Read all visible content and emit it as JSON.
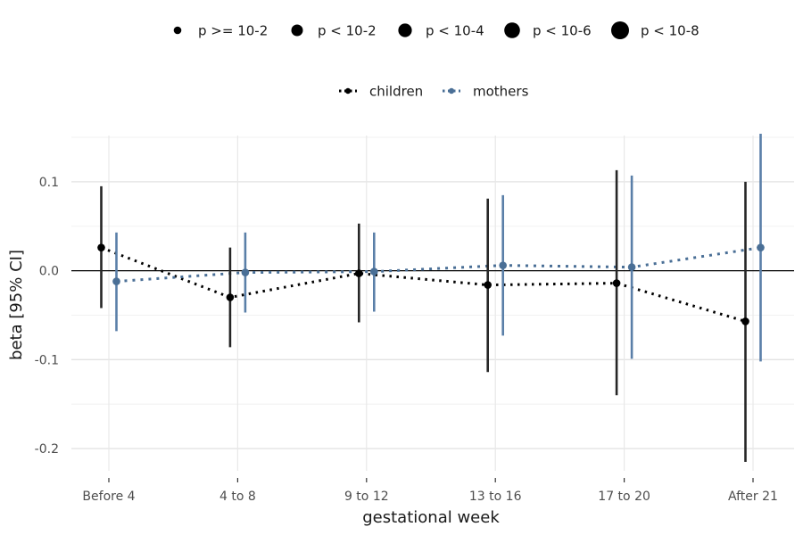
{
  "chart_data": {
    "type": "scatter",
    "xlabel": "gestational week",
    "ylabel": "beta [95% CI]",
    "categories": [
      "Before 4",
      "4 to 8",
      "9 to 12",
      "13 to 16",
      "17 to 20",
      "After 21"
    ],
    "ylim": [
      -0.225,
      0.152
    ],
    "yticks": [
      -0.2,
      -0.1,
      0.0,
      0.1
    ],
    "ytick_labels": [
      "-0.2",
      "-0.1",
      "0.0",
      "0.1"
    ],
    "reference_line": 0,
    "grid": true,
    "size_legend": {
      "position": "top",
      "entries": [
        "p >= 10-2",
        "p < 10-2",
        "p < 10-4",
        "p < 10-6",
        "p < 10-8"
      ]
    },
    "color_legend": {
      "position": "top",
      "entries": [
        "children",
        "mothers"
      ]
    },
    "series": [
      {
        "name": "children",
        "color": "#000000",
        "errorbar_color": "#262626",
        "values": [
          0.026,
          -0.03,
          -0.003,
          -0.016,
          -0.014,
          -0.057
        ],
        "lower": [
          -0.042,
          -0.086,
          -0.058,
          -0.114,
          -0.14,
          -0.215
        ],
        "upper": [
          0.095,
          0.026,
          0.053,
          0.081,
          0.113,
          0.1
        ]
      },
      {
        "name": "mothers",
        "color": "#4a6f96",
        "errorbar_color": "#5a7fa8",
        "values": [
          -0.012,
          -0.002,
          -0.001,
          0.006,
          0.004,
          0.026
        ],
        "lower": [
          -0.068,
          -0.047,
          -0.046,
          -0.073,
          -0.099,
          -0.102
        ],
        "upper": [
          0.043,
          0.043,
          0.043,
          0.085,
          0.107,
          0.154
        ]
      }
    ]
  }
}
